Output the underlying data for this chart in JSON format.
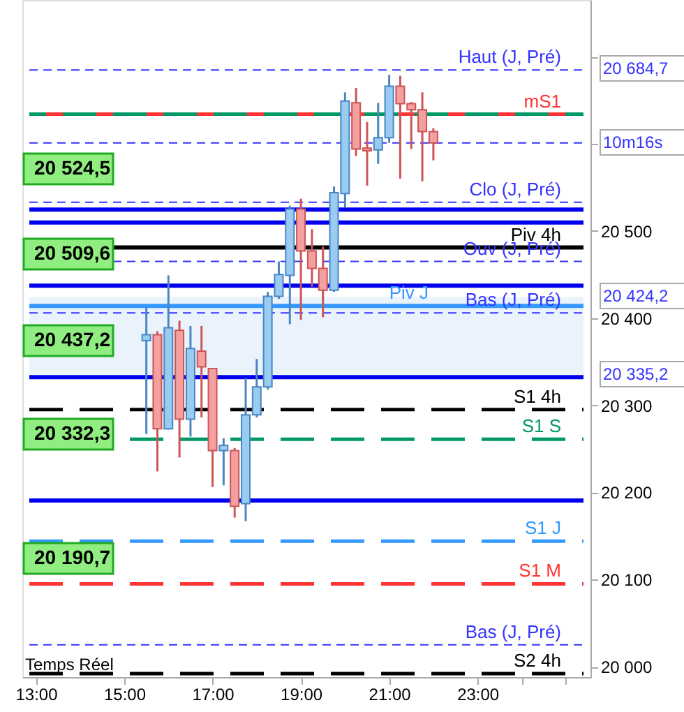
{
  "chart_data": {
    "type": "candlestick",
    "x": [
      15.5,
      15.75,
      16.0,
      16.25,
      16.5,
      16.75,
      17.0,
      17.25,
      17.5,
      17.75,
      18.0,
      18.25,
      18.5,
      18.75,
      19.0,
      19.25,
      19.5,
      19.75,
      20.0,
      20.25,
      20.5,
      20.75,
      21.0,
      21.25,
      21.5,
      21.75,
      22.0
    ],
    "ohlc": [
      [
        20374,
        20412,
        20267,
        20381
      ],
      [
        20381,
        20385,
        20224,
        20273
      ],
      [
        20273,
        20449,
        20272,
        20389
      ],
      [
        20386,
        20397,
        20240,
        20284
      ],
      [
        20284,
        20391,
        20264,
        20365
      ],
      [
        20362,
        20391,
        20286,
        20344
      ],
      [
        20342,
        20342,
        20206,
        20248
      ],
      [
        20248,
        20262,
        20208,
        20254
      ],
      [
        20248,
        20251,
        20171,
        20184
      ],
      [
        20187,
        20331,
        20167,
        20289
      ],
      [
        20289,
        20353,
        20286,
        20321
      ],
      [
        20321,
        20430,
        20318,
        20425
      ],
      [
        20425,
        20465,
        20422,
        20450
      ],
      [
        20449,
        20529,
        20393,
        20525
      ],
      [
        20525,
        20537,
        20398,
        20477
      ],
      [
        20477,
        20502,
        20436,
        20457
      ],
      [
        20457,
        20482,
        20401,
        20432
      ],
      [
        20432,
        20551,
        20430,
        20544
      ],
      [
        20543,
        20659,
        20527,
        20649
      ],
      [
        20647,
        20664,
        20586,
        20594
      ],
      [
        20595,
        20625,
        20552,
        20592
      ],
      [
        20593,
        20647,
        20577,
        20607
      ],
      [
        20607,
        20679,
        20601,
        20666
      ],
      [
        20666,
        20678,
        20560,
        20646
      ],
      [
        20646,
        20648,
        20594,
        20639
      ],
      [
        20639,
        20659,
        20557,
        20614
      ],
      [
        20614,
        20618,
        20581,
        20601
      ]
    ],
    "colors": [
      "#99ccf0",
      "#f4a0a0",
      "#99ccf0",
      "#f4a0a0",
      "#99ccf0",
      "#f4a0a0",
      "#f4a0a0",
      "#99ccf0",
      "#f4a0a0",
      "#99ccf0",
      "#99ccf0",
      "#99ccf0",
      "#99ccf0",
      "#99ccf0",
      "#f4a0a0",
      "#f4a0a0",
      "#f4a0a0",
      "#99ccf0",
      "#99ccf0",
      "#f4a0a0",
      "#f4a0a0",
      "#99ccf0",
      "#99ccf0",
      "#f4a0a0",
      "#f4a0a0",
      "#f4a0a0",
      "#f4a0a0"
    ],
    "xlim": [
      12.85,
      25.4
    ],
    "xticks": [
      {
        "value": 13,
        "label": "13:00"
      },
      {
        "value": 15,
        "label": "15:00"
      },
      {
        "value": 17,
        "label": "17:00"
      },
      {
        "value": 19,
        "label": "19:00"
      },
      {
        "value": 21,
        "label": "21:00"
      },
      {
        "value": 23,
        "label": "23:00"
      },
      {
        "value": 24,
        "label": null
      },
      {
        "value": 25,
        "label": null
      }
    ],
    "ylim": [
      19988,
      20765
    ],
    "yticks": [
      {
        "value": 20000,
        "label": "20 000"
      },
      {
        "value": 20100,
        "label": "20 100"
      },
      {
        "value": 20200,
        "label": "20 200"
      },
      {
        "value": 20300,
        "label": "20 300"
      },
      {
        "value": 20400,
        "label": "20 400"
      },
      {
        "value": 20500,
        "label": "20 500"
      },
      {
        "value": 20600,
        "label": null
      },
      {
        "value": 20700,
        "label": null
      }
    ],
    "grid": false,
    "bands": [
      {
        "axis": "y",
        "from": 20335.2,
        "to": 20424.2,
        "color": "#eaf3fc"
      }
    ],
    "ref_lines": [
      {
        "axis": "y",
        "value": 20684.7,
        "label": "Haut (J, Pré)",
        "color": "#3333ff",
        "line_style": "dotted"
      },
      {
        "axis": "y",
        "value": 20634,
        "label": "mS1",
        "color": "#ff3333",
        "line_style": "dashed"
      },
      {
        "axis": "y",
        "value": 20634,
        "color": "#009966",
        "line_style": "dashed"
      },
      {
        "axis": "y",
        "value": 20601,
        "color": "#3333ff",
        "line_style": "dotted"
      },
      {
        "axis": "y",
        "value": 20533,
        "label": "Clo (J, Pré)",
        "color": "#3333ff",
        "line_style": "dotted"
      },
      {
        "axis": "y",
        "value": 20524.5,
        "color": "#0000ee",
        "line_style": "solid"
      },
      {
        "axis": "y",
        "value": 20509.6,
        "color": "#0000ee",
        "line_style": "solid"
      },
      {
        "axis": "y",
        "value": 20481,
        "label": "Piv 4h",
        "color": "#000000",
        "line_style": "solid"
      },
      {
        "axis": "y",
        "value": 20465,
        "label": "Ouv (J, Pré)",
        "color": "#3333ff",
        "line_style": "dotted"
      },
      {
        "axis": "y",
        "value": 20437.2,
        "color": "#0000ee",
        "line_style": "solid"
      },
      {
        "axis": "y",
        "value": 20414,
        "label": "Piv J",
        "color": "#3399ff",
        "line_style": "solid"
      },
      {
        "axis": "y",
        "value": 20406,
        "label": "Bas (J, Pré)",
        "color": "#3333ff",
        "line_style": "dotted"
      },
      {
        "axis": "y",
        "value": 20332.3,
        "color": "#0000ee",
        "line_style": "solid"
      },
      {
        "axis": "y",
        "value": 20295,
        "label": "S1 4h",
        "color": "#000000",
        "line_style": "dashed"
      },
      {
        "axis": "y",
        "value": 20261,
        "label": "S1 S",
        "color": "#009966",
        "line_style": "dashed"
      },
      {
        "axis": "y",
        "value": 20190.7,
        "color": "#0000ee",
        "line_style": "solid"
      },
      {
        "axis": "y",
        "value": 20144,
        "label": "S1 J",
        "color": "#3399ff",
        "line_style": "dashed"
      },
      {
        "axis": "y",
        "value": 20095,
        "label": "S1 M",
        "color": "#ff3333",
        "line_style": "dashed"
      },
      {
        "axis": "y",
        "value": 20025,
        "label": "Bas (J, Pré)",
        "color": "#3333ff",
        "line_style": "dotted"
      },
      {
        "axis": "y",
        "value": 19992,
        "label": "S2 4h",
        "color": "#000000",
        "line_style": "dashed"
      }
    ],
    "annotations": [
      "20 524,5",
      "20 509,6",
      "20 437,2",
      "20 332,3",
      "20 190,7",
      "20 684,7",
      "10m16s",
      "20 424,2",
      "20 335,2",
      "Temps Réel"
    ]
  }
}
